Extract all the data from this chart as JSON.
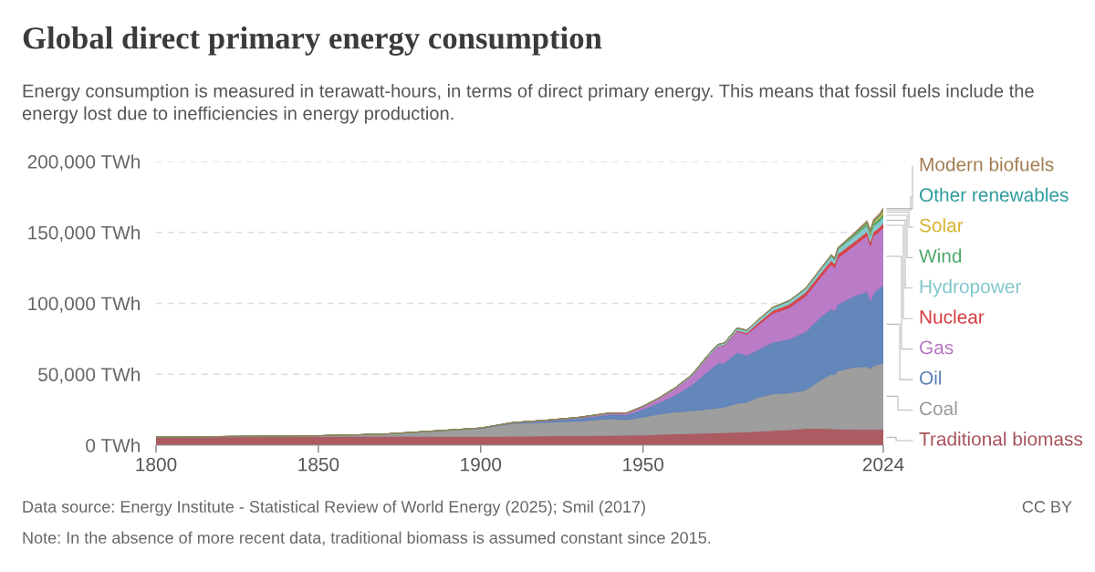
{
  "chart_data": {
    "type": "area",
    "stacked": true,
    "title": "Global direct primary energy consumption",
    "subtitle": "Energy consumption is measured in terawatt-hours, in terms of direct primary energy. This means that fossil fuels include the energy lost due to inefficiencies in energy production.",
    "x": [
      1800,
      1820,
      1850,
      1870,
      1900,
      1910,
      1920,
      1930,
      1940,
      1945,
      1950,
      1955,
      1960,
      1965,
      1970,
      1973,
      1975,
      1979,
      1982,
      1985,
      1990,
      1995,
      2000,
      2005,
      2008,
      2009,
      2010,
      2015,
      2019,
      2020,
      2021,
      2022,
      2023,
      2024
    ],
    "xlim": [
      1800,
      2024
    ],
    "xticks": [
      1800,
      1850,
      1900,
      1950,
      2024
    ],
    "ylim": [
      0,
      200000
    ],
    "yticks": [
      {
        "value": 0,
        "label": "0 TWh"
      },
      {
        "value": 50000,
        "label": "50,000 TWh"
      },
      {
        "value": 100000,
        "label": "100,000 TWh"
      },
      {
        "value": 150000,
        "label": "150,000 TWh"
      },
      {
        "value": 200000,
        "label": "200,000 TWh"
      }
    ],
    "grid": "y",
    "legend": "right",
    "series": [
      {
        "name": "Traditional biomass",
        "color": "#a8525a",
        "values": [
          5600,
          5800,
          6100,
          6300,
          6100,
          6300,
          6500,
          6700,
          6900,
          7000,
          7100,
          7500,
          8000,
          8200,
          8500,
          8700,
          8800,
          9100,
          9400,
          9700,
          10300,
          10800,
          11800,
          11700,
          11500,
          11400,
          11300,
          11100,
          11100,
          11100,
          11100,
          11100,
          11100,
          11100
        ]
      },
      {
        "name": "Coal",
        "color": "#999999",
        "values": [
          100,
          300,
          600,
          1500,
          5700,
          9000,
          9600,
          10200,
          11700,
          11000,
          12600,
          14500,
          15400,
          16100,
          16900,
          17500,
          18000,
          20300,
          20800,
          23700,
          25900,
          26000,
          27000,
          34600,
          38500,
          38200,
          41000,
          44000,
          44200,
          42800,
          44900,
          45600,
          46200,
          46800
        ]
      },
      {
        "name": "Oil",
        "color": "#5b7fb7",
        "values": [
          0,
          0,
          0,
          0,
          200,
          500,
          1100,
          2000,
          3100,
          3500,
          5400,
          8000,
          12000,
          18100,
          26700,
          31500,
          31000,
          36000,
          33000,
          33500,
          36300,
          38000,
          41000,
          44700,
          46000,
          45000,
          46800,
          50000,
          53000,
          47800,
          51000,
          52500,
          53800,
          54800
        ]
      },
      {
        "name": "Gas",
        "color": "#b675c4",
        "values": [
          0,
          0,
          0,
          0,
          100,
          200,
          300,
          600,
          900,
          1100,
          2100,
          3000,
          4600,
          6300,
          10100,
          11700,
          12300,
          14800,
          15000,
          17000,
          20400,
          22100,
          25100,
          28200,
          31500,
          30400,
          32800,
          35500,
          39400,
          38900,
          40600,
          40000,
          40100,
          40900
        ]
      },
      {
        "name": "Nuclear",
        "color": "#d6393f",
        "values": [
          0,
          0,
          0,
          0,
          0,
          0,
          0,
          0,
          0,
          0,
          0,
          0,
          0,
          0,
          100,
          200,
          400,
          700,
          900,
          1500,
          2000,
          2300,
          2600,
          2800,
          2700,
          2700,
          2800,
          2600,
          2800,
          2700,
          2800,
          2700,
          2700,
          2800
        ]
      },
      {
        "name": "Hydropower",
        "color": "#7fc6c9",
        "values": [
          0,
          0,
          0,
          0,
          0,
          0,
          100,
          100,
          200,
          200,
          300,
          500,
          700,
          900,
          1200,
          1300,
          1500,
          1700,
          1800,
          2000,
          2200,
          2500,
          2700,
          2900,
          3200,
          3200,
          3400,
          3900,
          4200,
          4400,
          4300,
          4300,
          4200,
          4400
        ]
      },
      {
        "name": "Wind",
        "color": "#4ca86a",
        "values": [
          0,
          0,
          0,
          0,
          0,
          0,
          0,
          0,
          0,
          0,
          0,
          0,
          0,
          0,
          0,
          0,
          0,
          0,
          0,
          0,
          0,
          0,
          0,
          100,
          200,
          300,
          300,
          800,
          1400,
          1600,
          1900,
          2100,
          2300,
          2500
        ]
      },
      {
        "name": "Solar",
        "color": "#d9b430",
        "values": [
          0,
          0,
          0,
          0,
          0,
          0,
          0,
          0,
          0,
          0,
          0,
          0,
          0,
          0,
          0,
          0,
          0,
          0,
          0,
          0,
          0,
          0,
          0,
          0,
          0,
          0,
          0,
          300,
          700,
          900,
          1000,
          1300,
          1600,
          2100
        ]
      },
      {
        "name": "Other renewables",
        "color": "#2e9a9c",
        "values": [
          0,
          0,
          0,
          0,
          0,
          0,
          0,
          0,
          0,
          0,
          0,
          0,
          0,
          0,
          100,
          100,
          100,
          100,
          100,
          200,
          200,
          200,
          300,
          300,
          400,
          400,
          400,
          600,
          600,
          700,
          700,
          700,
          700,
          800
        ]
      },
      {
        "name": "Modern biofuels",
        "color": "#a07c4f",
        "values": [
          0,
          0,
          0,
          0,
          0,
          0,
          0,
          0,
          0,
          0,
          0,
          0,
          0,
          0,
          0,
          0,
          0,
          0,
          0,
          0,
          100,
          100,
          100,
          200,
          500,
          500,
          600,
          800,
          1000,
          900,
          1000,
          1100,
          1100,
          1200
        ]
      }
    ],
    "annotations": [
      "Data source: Energy Institute - Statistical Review of World Energy (2025); Smil (2017)",
      "CC BY",
      "Note: In the absence of more recent data, traditional biomass is assumed constant since 2015."
    ]
  }
}
